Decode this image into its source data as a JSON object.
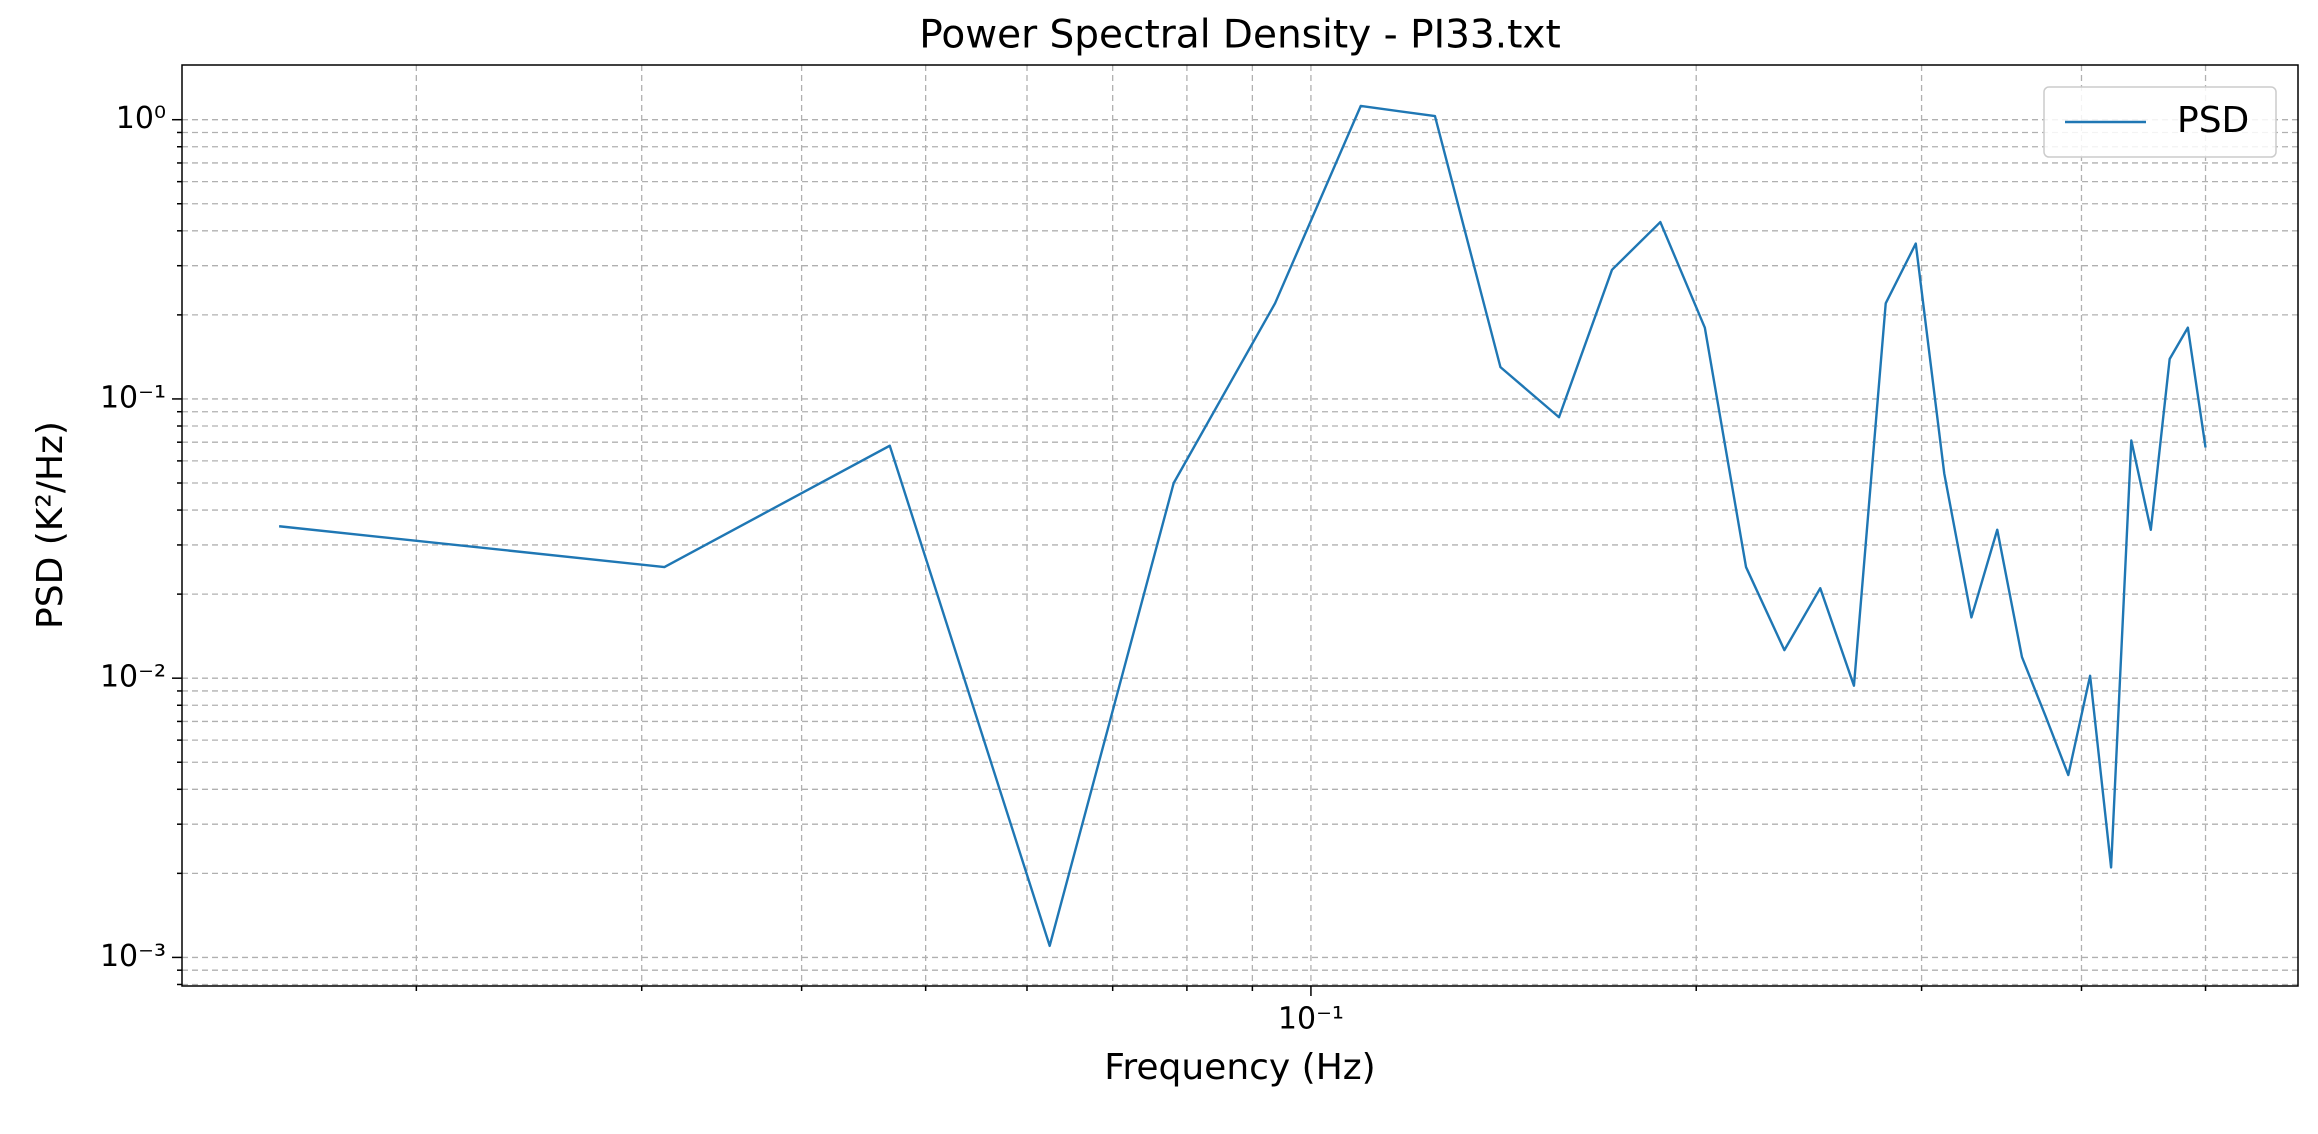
{
  "chart_data": {
    "type": "line",
    "title": "Power Spectral Density - PI33.txt",
    "xlabel": "Frequency (Hz)",
    "ylabel": "PSD (K²/Hz)",
    "x": [
      0.015625,
      0.03125,
      0.046875,
      0.0625,
      0.078125,
      0.09375,
      0.109375,
      0.125,
      0.140625,
      0.15625,
      0.171875,
      0.1875,
      0.203125,
      0.21875,
      0.234375,
      0.25,
      0.265625,
      0.28125,
      0.296875,
      0.3125,
      0.328125,
      0.34375,
      0.359375,
      0.375,
      0.390625,
      0.40625,
      0.421875,
      0.4375,
      0.453125,
      0.46875,
      0.484375,
      0.5
    ],
    "series": [
      {
        "name": "PSD",
        "color": "#1f77b4",
        "values": [
          0.035,
          0.025,
          0.068,
          0.0011,
          0.05,
          0.22,
          1.12,
          1.03,
          0.13,
          0.086,
          0.29,
          0.43,
          0.18,
          0.025,
          0.0126,
          0.021,
          0.0094,
          0.22,
          0.36,
          0.054,
          0.0165,
          0.034,
          0.0119,
          0.0073,
          0.0045,
          0.0102,
          0.0021,
          0.071,
          0.034,
          0.139,
          0.18,
          0.067
        ]
      }
    ],
    "xscale": "log",
    "yscale": "log",
    "xlim": [
      0.01312,
      0.5905
    ],
    "ylim": [
      0.00079,
      1.57
    ],
    "xticks": [
      {
        "value": 0.1,
        "label": "10⁻¹"
      }
    ],
    "xminorticks": [
      0.02,
      0.03,
      0.04,
      0.05,
      0.06,
      0.07,
      0.08,
      0.09,
      0.2,
      0.3,
      0.4,
      0.5
    ],
    "yticks": [
      {
        "value": 0.001,
        "label": "10⁻³"
      },
      {
        "value": 0.01,
        "label": "10⁻²"
      },
      {
        "value": 0.1,
        "label": "10⁻¹"
      },
      {
        "value": 1,
        "label": "10⁰"
      }
    ],
    "yminorticks": [
      0.0008,
      0.0009,
      0.002,
      0.003,
      0.004,
      0.005,
      0.006,
      0.007,
      0.008,
      0.009,
      0.02,
      0.03,
      0.04,
      0.05,
      0.06,
      0.07,
      0.08,
      0.09,
      0.2,
      0.3,
      0.4,
      0.5,
      0.6,
      0.7,
      0.8,
      0.9
    ],
    "grid": true,
    "legend_position": "upper right"
  }
}
